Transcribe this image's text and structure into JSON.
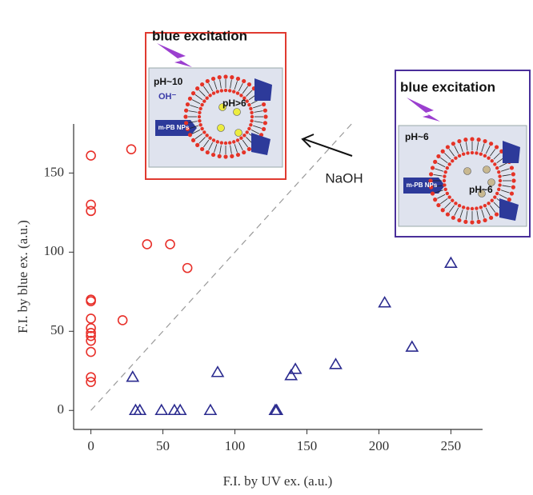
{
  "chart_data": {
    "type": "scatter",
    "xlabel": "F.I. by UV ex. (a.u.)",
    "ylabel": "F.I. by blue ex. (a.u.)",
    "xlim": [
      -12,
      272
    ],
    "ylim": [
      -12,
      181
    ],
    "xticks": [
      0,
      50,
      100,
      150,
      200,
      250
    ],
    "yticks": [
      0,
      50,
      100,
      150
    ],
    "diagonal": true,
    "series": [
      {
        "marker": "circle",
        "color": "#e8302a",
        "x": [
          0,
          28,
          0,
          0,
          39,
          55,
          67,
          0,
          0,
          22,
          0,
          0,
          0,
          0,
          0,
          0,
          0,
          0
        ],
        "values": [
          161,
          165,
          130,
          126,
          105,
          105,
          90,
          70,
          69,
          57,
          58,
          52,
          47,
          44,
          37,
          21,
          18,
          49
        ]
      },
      {
        "marker": "triangle",
        "color": "#2b2b8f",
        "x": [
          29,
          31,
          34,
          49,
          58,
          62,
          83,
          88,
          128,
          129,
          139,
          142,
          170,
          204,
          223,
          250
        ],
        "values": [
          21,
          0,
          0,
          0,
          0,
          0,
          0,
          24,
          0,
          0,
          22,
          26,
          29,
          68,
          40,
          93
        ]
      }
    ],
    "annotations": [
      "NaOH"
    ],
    "insets": [
      {
        "title": "blue excitation",
        "labels": [
          "pH~10",
          "OH⁻",
          "pH>6",
          "m-PB NPs"
        ]
      },
      {
        "title": "blue excitation",
        "labels": [
          "pH~6",
          "m-PB NPs",
          "pH~6"
        ]
      }
    ]
  }
}
